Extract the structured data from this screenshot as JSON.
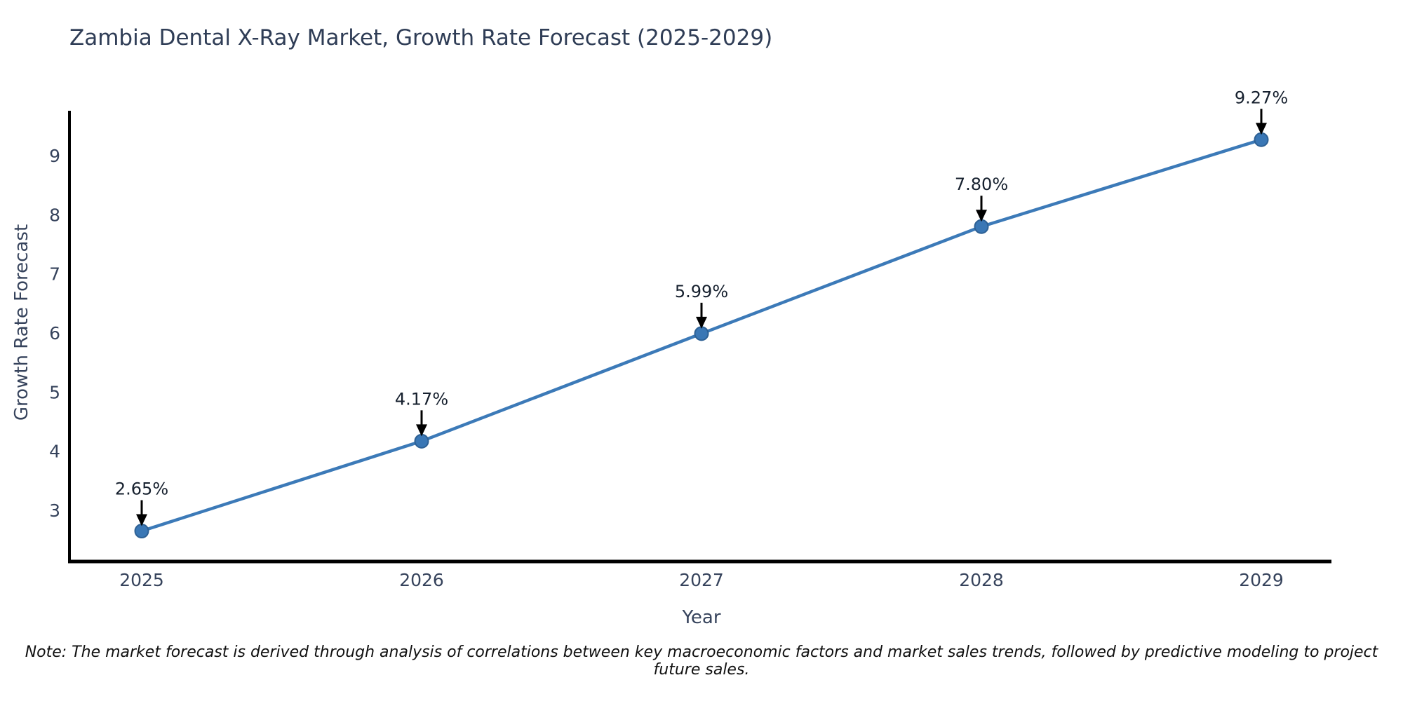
{
  "page": {
    "title": "Zambia Dental X-Ray Market, Growth Rate Forecast (2025-2029)",
    "note": "Note: The market forecast is derived through analysis of correlations between key macroeconomic factors and market sales trends, followed by predictive modeling to project future sales."
  },
  "chart_data": {
    "type": "line",
    "title": "Zambia Dental X-Ray Market, Growth Rate Forecast (2025-2029)",
    "xlabel": "Year",
    "ylabel": "Growth Rate Forecast",
    "x": [
      2025,
      2026,
      2027,
      2028,
      2029
    ],
    "x_tick_labels": [
      "2025",
      "2026",
      "2027",
      "2028",
      "2029"
    ],
    "series": [
      {
        "name": "Growth Rate Forecast",
        "values": [
          2.65,
          4.17,
          5.99,
          7.8,
          9.27
        ]
      }
    ],
    "point_labels": [
      "2.65%",
      "4.17%",
      "5.99%",
      "7.80%",
      "9.27%"
    ],
    "yticks": [
      3,
      4,
      5,
      6,
      7,
      8,
      9
    ],
    "ylim": [
      2.13,
      9.76
    ],
    "xlim": [
      2024.74,
      2029.25
    ],
    "grid": false,
    "legend": "none",
    "annotation_style": "value label above point with downward black arrow",
    "colors": {
      "line": "#3c7ab8",
      "marker": "#3a77b5",
      "marker_edge": "#2d6094",
      "axis": "#000000",
      "tick_text": "#36435c",
      "title_text": "#2f3d56",
      "annotation_text": "#16202e",
      "note_text": "#111111",
      "background": "#ffffff"
    }
  }
}
